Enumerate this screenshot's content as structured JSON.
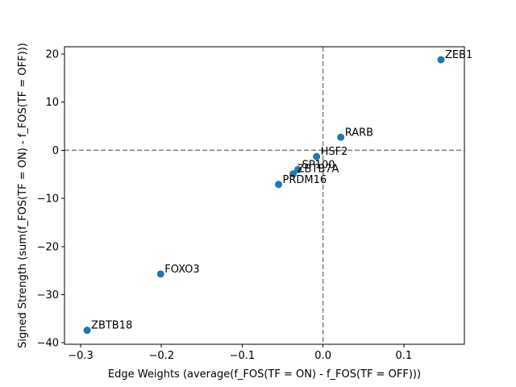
{
  "chart_data": {
    "type": "scatter",
    "title": "",
    "xlabel": "Edge Weights (average(f_FOS(TF = ON) - f_FOS(TF = OFF)))",
    "ylabel": "Signed Strength (sum(f_FOS(TF = ON) - f_FOS(TF = OFF)))",
    "xlim": [
      -0.32,
      0.175
    ],
    "ylim": [
      -40.3,
      21.5
    ],
    "xticks": [
      -0.3,
      -0.2,
      -0.1,
      0.0,
      0.1
    ],
    "xtick_labels": [
      "−0.3",
      "−0.2",
      "−0.1",
      "0.0",
      "0.1"
    ],
    "yticks": [
      -40,
      -30,
      -20,
      -10,
      0,
      10,
      20
    ],
    "ytick_labels": [
      "−40",
      "−30",
      "−20",
      "−10",
      "0",
      "10",
      "20"
    ],
    "reference_lines": {
      "x": 0,
      "y": 0,
      "style": "dashed",
      "color": "#808080"
    },
    "grid": false,
    "marker_color": "#1f77b4",
    "points": [
      {
        "label": "ZEB1",
        "x": 0.146,
        "y": 18.8
      },
      {
        "label": "RARB",
        "x": 0.022,
        "y": 2.7
      },
      {
        "label": "HSF2",
        "x": -0.008,
        "y": -1.3
      },
      {
        "label": "SP100",
        "x": -0.031,
        "y": -4.0
      },
      {
        "label": "ZBTB7A",
        "x": -0.037,
        "y": -4.9
      },
      {
        "label": "PRDM16",
        "x": -0.055,
        "y": -7.1
      },
      {
        "label": "FOXO3",
        "x": -0.201,
        "y": -25.7
      },
      {
        "label": "ZBTB18",
        "x": -0.292,
        "y": -37.4
      }
    ]
  }
}
